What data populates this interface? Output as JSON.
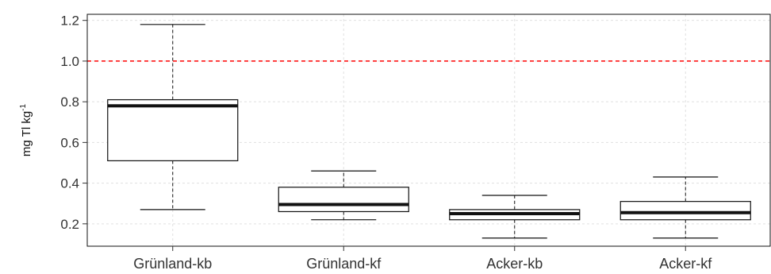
{
  "chart_data": {
    "type": "boxplot",
    "title": "",
    "xlabel": "",
    "ylabel": {
      "text": "mg Tl kg",
      "superscript": "-1"
    },
    "ylim": [
      0.09,
      1.23
    ],
    "yticks": [
      0.2,
      0.4,
      0.6,
      0.8,
      1.0,
      1.2
    ],
    "ytick_labels": [
      "0.2",
      "0.4",
      "0.6",
      "0.8",
      "1.0",
      "1.2"
    ],
    "grid": true,
    "reference_line": {
      "y": 1.0,
      "color": "#ff0000",
      "style": "dashed"
    },
    "categories": [
      "Grünland-kb",
      "Grünland-kf",
      "Acker-kb",
      "Acker-kf"
    ],
    "boxes": [
      {
        "category": "Grünland-kb",
        "whisker_low": 0.27,
        "q1": 0.51,
        "median": 0.78,
        "q3": 0.81,
        "whisker_high": 1.18
      },
      {
        "category": "Grünland-kf",
        "whisker_low": 0.22,
        "q1": 0.26,
        "median": 0.295,
        "q3": 0.38,
        "whisker_high": 0.46
      },
      {
        "category": "Acker-kb",
        "whisker_low": 0.13,
        "q1": 0.22,
        "median": 0.25,
        "q3": 0.27,
        "whisker_high": 0.34
      },
      {
        "category": "Acker-kf",
        "whisker_low": 0.13,
        "q1": 0.22,
        "median": 0.255,
        "q3": 0.31,
        "whisker_high": 0.43
      }
    ],
    "colors": {
      "box_stroke": "#111111",
      "grid": "#e0e0e0",
      "reference": "#ff0000"
    }
  }
}
